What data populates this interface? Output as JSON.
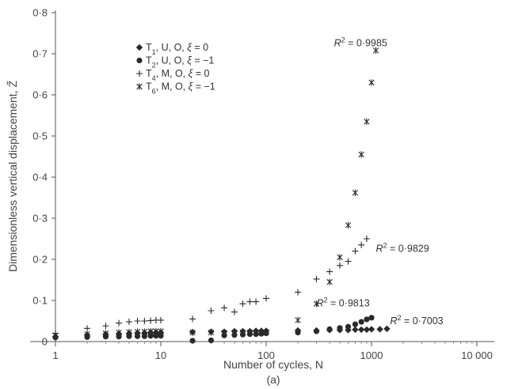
{
  "chart_data": {
    "type": "scatter",
    "panel_label": "(a)",
    "xlabel": "Number of cycles, N",
    "ylabel": "Dimensionless vertical displacement, Z̃",
    "xscale": "log",
    "xlim": [
      1,
      10000
    ],
    "ylim": [
      0,
      0.8
    ],
    "xticks": [
      1,
      10,
      100,
      1000,
      10000
    ],
    "xtick_labels": [
      "1",
      "10",
      "100",
      "1000",
      "10 000"
    ],
    "yticks": [
      0,
      0.1,
      0.2,
      0.3,
      0.4,
      0.5,
      0.6,
      0.7,
      0.8
    ],
    "ytick_labels": [
      "0",
      "0·1",
      "0·2",
      "0·3",
      "0·4",
      "0·5",
      "0·6",
      "0·7",
      "0·8"
    ],
    "grid": false,
    "legend_position": "top-left",
    "series": [
      {
        "legend": "T1, U, O, ξ = 0",
        "marker": "diamond",
        "x": [
          1,
          2,
          3,
          4,
          5,
          6,
          7,
          8,
          9,
          10,
          20,
          30,
          40,
          50,
          60,
          70,
          80,
          90,
          100,
          200,
          300,
          400,
          500,
          600,
          700,
          800,
          900,
          1000,
          1200,
          1400
        ],
        "y": [
          0.012,
          0.016,
          0.018,
          0.019,
          0.02,
          0.021,
          0.021,
          0.022,
          0.022,
          0.022,
          0.023,
          0.024,
          0.024,
          0.025,
          0.025,
          0.025,
          0.026,
          0.026,
          0.026,
          0.027,
          0.027,
          0.028,
          0.028,
          0.028,
          0.029,
          0.029,
          0.029,
          0.03,
          0.03,
          0.031
        ]
      },
      {
        "legend": "T2, U, O, ξ = −1",
        "marker": "circle",
        "x": [
          1,
          2,
          3,
          4,
          5,
          6,
          7,
          8,
          9,
          10,
          20,
          30,
          40,
          50,
          60,
          70,
          80,
          90,
          100,
          200,
          300,
          400,
          500,
          600,
          700,
          800,
          900,
          1000
        ],
        "y": [
          0.01,
          0.011,
          0.012,
          0.012,
          0.013,
          0.013,
          0.013,
          0.014,
          0.014,
          0.014,
          0.002,
          0.003,
          0.015,
          0.016,
          0.017,
          0.018,
          0.018,
          0.019,
          0.02,
          0.022,
          0.025,
          0.03,
          0.033,
          0.036,
          0.042,
          0.048,
          0.054,
          0.058
        ]
      },
      {
        "legend": "T4, M, O, ξ = 0",
        "marker": "plus",
        "x": [
          1,
          2,
          3,
          4,
          5,
          6,
          7,
          8,
          9,
          10,
          20,
          30,
          40,
          50,
          60,
          70,
          80,
          100,
          200,
          300,
          400,
          500,
          600,
          700,
          800,
          900
        ],
        "y": [
          0.02,
          0.032,
          0.038,
          0.045,
          0.048,
          0.05,
          0.05,
          0.051,
          0.052,
          0.052,
          0.055,
          0.075,
          0.082,
          0.072,
          0.092,
          0.097,
          0.097,
          0.105,
          0.12,
          0.152,
          0.17,
          0.185,
          0.195,
          0.22,
          0.235,
          0.25
        ]
      },
      {
        "legend": "T6, M, O, ξ = −1",
        "marker": "star",
        "x": [
          1,
          2,
          3,
          4,
          5,
          6,
          7,
          8,
          9,
          10,
          20,
          30,
          40,
          50,
          60,
          70,
          80,
          90,
          100,
          200,
          300,
          400,
          500,
          600,
          700,
          800,
          900,
          1000,
          1100
        ],
        "y": [
          0.015,
          0.018,
          0.02,
          0.022,
          0.023,
          0.024,
          0.024,
          0.025,
          0.025,
          0.025,
          0.022,
          0.022,
          0.021,
          0.022,
          0.022,
          0.022,
          0.022,
          0.022,
          0.023,
          0.052,
          0.092,
          0.145,
          0.205,
          0.283,
          0.362,
          0.455,
          0.535,
          0.63,
          0.708
        ]
      }
    ],
    "annotations": [
      {
        "r2": "0·9985",
        "series": "T6",
        "x": 440,
        "y": 0.718
      },
      {
        "r2": "0·9829",
        "series": "T4",
        "x": 1100,
        "y": 0.218
      },
      {
        "r2": "0·9813",
        "series": "T2",
        "x": 300,
        "y": 0.086
      },
      {
        "r2": "0·7003",
        "series": "T1",
        "x": 1500,
        "y": 0.042
      }
    ]
  }
}
